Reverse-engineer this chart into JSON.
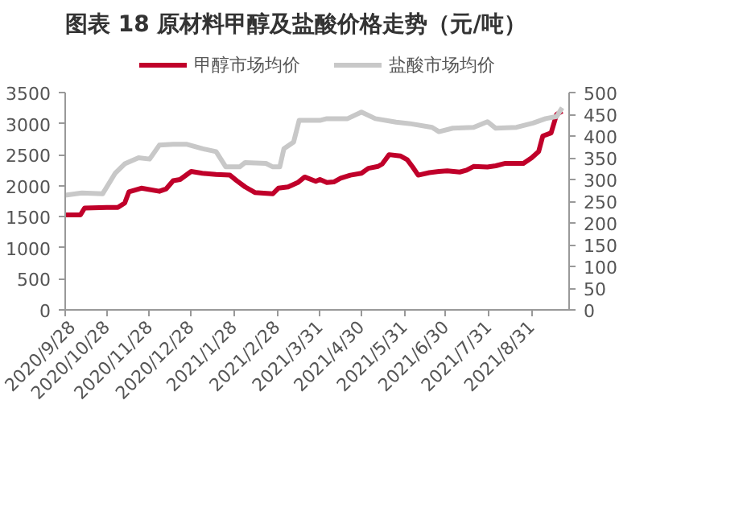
{
  "chart_data": {
    "type": "line",
    "title": "图表 18 原材料甲醇及盐酸价格走势（元/吨）",
    "legend": "top",
    "grid": false,
    "marker": "none",
    "line_style": "solid",
    "xlim": [
      "2020-09-28",
      "2021-09-27"
    ],
    "xticks": [
      {
        "value": "2020-09-28",
        "label": "2020/9/28"
      },
      {
        "value": "2020-10-28",
        "label": "2020/10/28"
      },
      {
        "value": "2020-11-28",
        "label": "2020/11/28"
      },
      {
        "value": "2020-12-28",
        "label": "2020/12/28"
      },
      {
        "value": "2021-01-28",
        "label": "2021/1/28"
      },
      {
        "value": "2021-02-28",
        "label": "2021/2/28"
      },
      {
        "value": "2021-03-31",
        "label": "2021/3/31"
      },
      {
        "value": "2021-04-30",
        "label": "2021/4/30"
      },
      {
        "value": "2021-05-31",
        "label": "2021/5/31"
      },
      {
        "value": "2021-06-30",
        "label": "2021/6/30"
      },
      {
        "value": "2021-07-31",
        "label": "2021/7/31"
      },
      {
        "value": "2021-08-31",
        "label": "2021/8/31"
      }
    ],
    "ylim": [
      0,
      3500
    ],
    "yticks": [
      0,
      500,
      1000,
      1500,
      2000,
      2500,
      3000,
      3500
    ],
    "y2lim": [
      0,
      500
    ],
    "y2ticks": [
      0,
      50,
      100,
      150,
      200,
      250,
      300,
      350,
      400,
      450,
      500
    ],
    "series": [
      {
        "name": "甲醇市场均价",
        "color": "#c0002a",
        "x": [
          "2020-09-28",
          "2020-10-09",
          "2020-10-12",
          "2020-10-28",
          "2020-11-05",
          "2020-11-10",
          "2020-11-13",
          "2020-11-22",
          "2020-12-05",
          "2020-12-10",
          "2020-12-15",
          "2020-12-20",
          "2020-12-28",
          "2021-01-05",
          "2021-01-15",
          "2021-01-25",
          "2021-01-30",
          "2021-02-05",
          "2021-02-12",
          "2021-02-25",
          "2021-03-01",
          "2021-03-08",
          "2021-03-15",
          "2021-03-20",
          "2021-03-28",
          "2021-03-31",
          "2021-04-05",
          "2021-04-10",
          "2021-04-15",
          "2021-04-22",
          "2021-04-30",
          "2021-05-05",
          "2021-05-12",
          "2021-05-15",
          "2021-05-20",
          "2021-05-28",
          "2021-06-02",
          "2021-06-06",
          "2021-06-10",
          "2021-06-18",
          "2021-06-25",
          "2021-07-01",
          "2021-07-10",
          "2021-07-15",
          "2021-07-20",
          "2021-07-30",
          "2021-08-05",
          "2021-08-12",
          "2021-08-25",
          "2021-08-31",
          "2021-09-05",
          "2021-09-08",
          "2021-09-14",
          "2021-09-18",
          "2021-09-22"
        ],
        "values": [
          1530,
          1530,
          1640,
          1650,
          1650,
          1720,
          1900,
          1960,
          1910,
          1950,
          2080,
          2100,
          2230,
          2200,
          2180,
          2170,
          2080,
          1980,
          1890,
          1870,
          1960,
          1980,
          2050,
          2140,
          2070,
          2100,
          2050,
          2060,
          2120,
          2170,
          2200,
          2280,
          2310,
          2350,
          2500,
          2480,
          2420,
          2300,
          2170,
          2210,
          2230,
          2240,
          2220,
          2250,
          2310,
          2300,
          2320,
          2360,
          2360,
          2450,
          2550,
          2800,
          2850,
          3150,
          3200
        ]
      },
      {
        "name": "盐酸市场均价",
        "color": "#c8c8c8",
        "axis": "y2",
        "x": [
          "2020-09-28",
          "2020-10-10",
          "2020-10-25",
          "2020-11-03",
          "2020-11-10",
          "2020-11-20",
          "2020-11-28",
          "2020-12-05",
          "2020-12-15",
          "2020-12-25",
          "2021-01-05",
          "2021-01-15",
          "2021-01-22",
          "2021-02-01",
          "2021-02-05",
          "2021-02-20",
          "2021-02-25",
          "2021-03-02",
          "2021-03-05",
          "2021-03-12",
          "2021-03-16",
          "2021-03-31",
          "2021-04-05",
          "2021-04-20",
          "2021-04-30",
          "2021-05-10",
          "2021-05-25",
          "2021-06-05",
          "2021-06-20",
          "2021-06-25",
          "2021-07-05",
          "2021-07-20",
          "2021-07-30",
          "2021-08-05",
          "2021-08-20",
          "2021-09-01",
          "2021-09-10",
          "2021-09-18",
          "2021-09-22"
        ],
        "values": [
          264,
          269,
          267,
          314,
          336,
          350,
          347,
          379,
          381,
          381,
          371,
          364,
          329,
          329,
          339,
          337,
          329,
          329,
          371,
          386,
          436,
          436,
          440,
          440,
          455,
          440,
          432,
          428,
          420,
          410,
          418,
          420,
          433,
          418,
          420,
          430,
          440,
          445,
          465
        ]
      }
    ]
  }
}
